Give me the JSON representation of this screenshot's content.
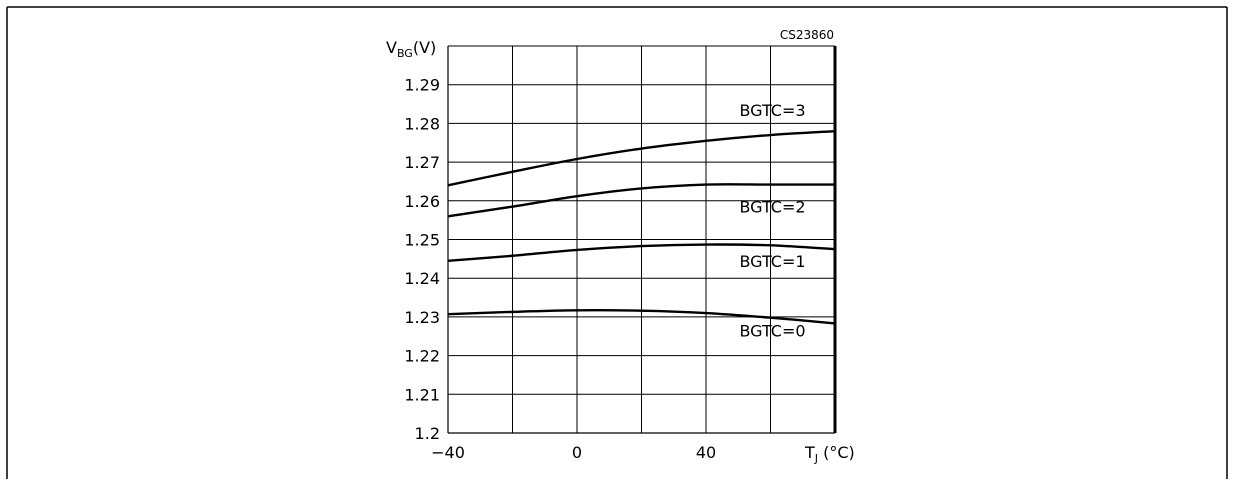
{
  "figure": {
    "code": "CS23860"
  },
  "chart_data": {
    "type": "line",
    "x_axis": {
      "label_main": "T",
      "label_sub": "J",
      "label_unit": " (°C)",
      "range": [
        -40,
        80
      ],
      "tick_values": [
        -40,
        0,
        40
      ],
      "tick_labels": [
        "−40",
        "0",
        "40"
      ]
    },
    "y_axis": {
      "label_main": "V",
      "label_sub": "BG",
      "label_unit": "(V)",
      "range": [
        1.2,
        1.3
      ],
      "tick_values": [
        1.2,
        1.21,
        1.22,
        1.23,
        1.24,
        1.25,
        1.26,
        1.27,
        1.28,
        1.29
      ],
      "tick_labels": [
        "1.2",
        "1.21",
        "1.22",
        "1.23",
        "1.24",
        "1.25",
        "1.26",
        "1.27",
        "1.28",
        "1.29"
      ]
    },
    "grid": true,
    "x_grid": [
      -40,
      -20,
      0,
      20,
      40,
      60,
      80
    ],
    "y_grid": [
      1.2,
      1.21,
      1.22,
      1.23,
      1.24,
      1.25,
      1.26,
      1.27,
      1.28,
      1.29,
      1.3
    ],
    "series": [
      {
        "name": "BGTC=3",
        "x": [
          -40,
          -20,
          0,
          20,
          40,
          60,
          80
        ],
        "y": [
          1.264,
          1.2675,
          1.2708,
          1.2735,
          1.2755,
          1.277,
          1.278
        ]
      },
      {
        "name": "BGTC=2",
        "x": [
          -40,
          -20,
          0,
          20,
          40,
          60,
          80
        ],
        "y": [
          1.256,
          1.2585,
          1.2612,
          1.2632,
          1.2642,
          1.2642,
          1.2642
        ]
      },
      {
        "name": "BGTC=1",
        "x": [
          -40,
          -20,
          0,
          20,
          40,
          60,
          80
        ],
        "y": [
          1.2445,
          1.2458,
          1.2473,
          1.2483,
          1.2487,
          1.2485,
          1.2475
        ]
      },
      {
        "name": "BGTC=0",
        "x": [
          -40,
          -20,
          0,
          20,
          40,
          60,
          80
        ],
        "y": [
          1.2307,
          1.2313,
          1.2317,
          1.2316,
          1.231,
          1.2298,
          1.2283
        ]
      }
    ],
    "curve_labels": [
      {
        "text": "BGTC=3",
        "x": 60,
        "y": 1.2835
      },
      {
        "text": "BGTC=2",
        "x": 60,
        "y": 1.2585
      },
      {
        "text": "BGTC=1",
        "x": 60,
        "y": 1.2445
      },
      {
        "text": "BGTC=0",
        "x": 60,
        "y": 1.2265
      }
    ]
  }
}
